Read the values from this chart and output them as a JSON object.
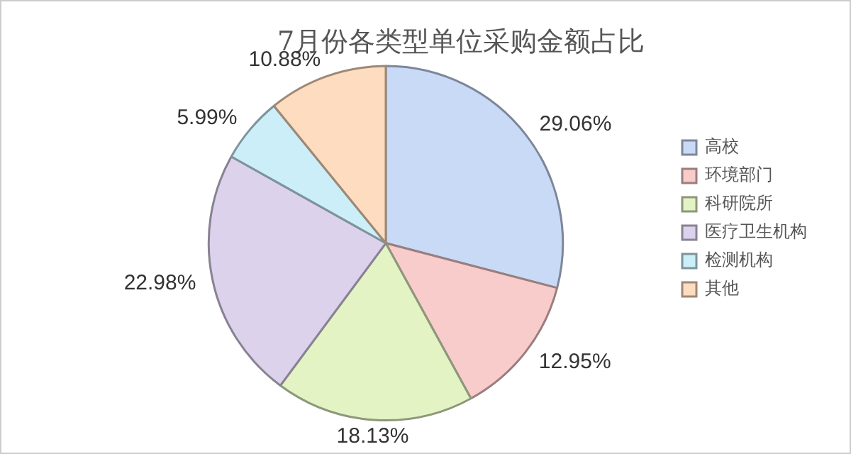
{
  "chart_data": {
    "type": "pie",
    "title": "7月份各类型单位采购金额占比",
    "categories": [
      "高校",
      "环境部门",
      "科研院所",
      "医疗卫生机构",
      "检测机构",
      "其他"
    ],
    "values": [
      29.06,
      12.95,
      18.13,
      22.98,
      5.99,
      10.88
    ],
    "value_labels": [
      "29.06%",
      "12.95%",
      "18.13%",
      "22.98%",
      "5.99%",
      "10.88%"
    ],
    "colors": [
      "#c9daf6",
      "#f8cccb",
      "#e4f3c4",
      "#dcd2ec",
      "#cbeef8",
      "#fddcbf"
    ],
    "legend": "right"
  }
}
